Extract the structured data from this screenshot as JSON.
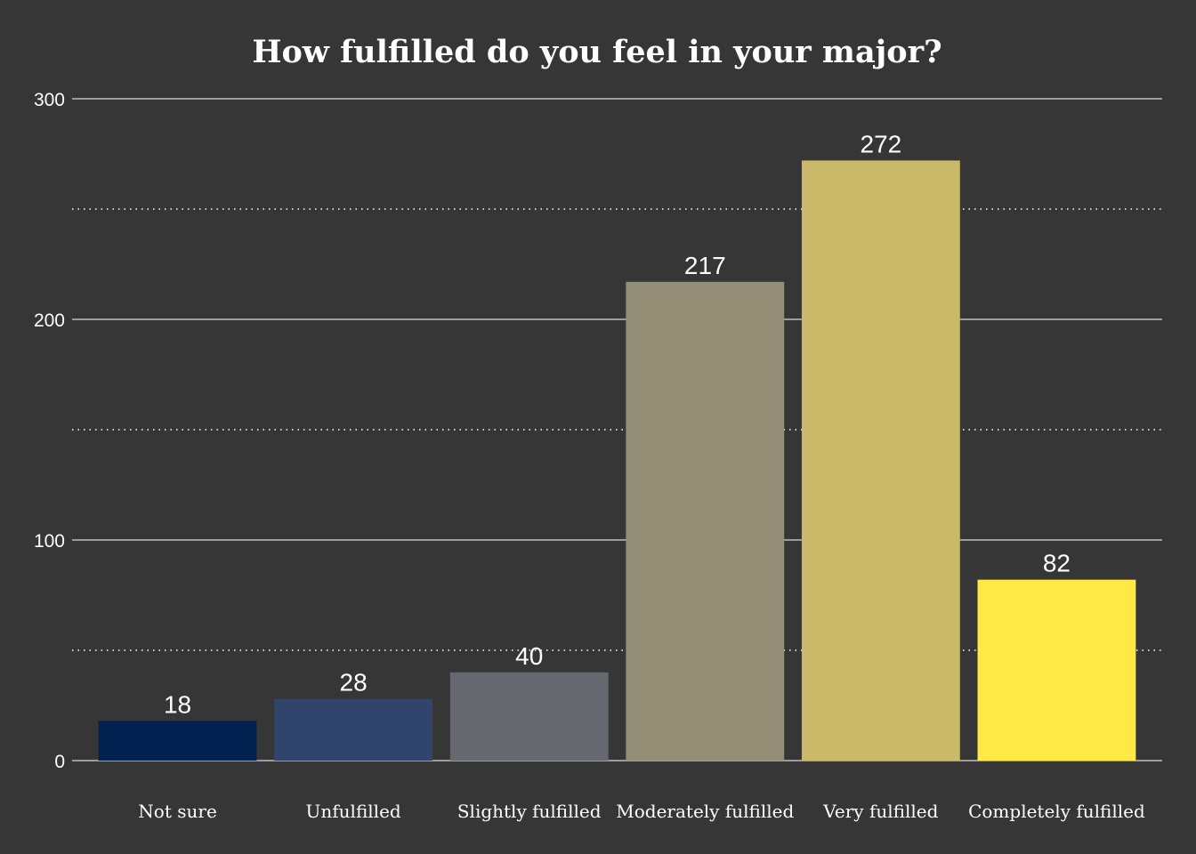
{
  "chart_data": {
    "type": "bar",
    "title": "How fulfilled do you feel in your major?",
    "xlabel": "",
    "ylabel": "",
    "categories": [
      "Not sure",
      "Unfulfilled",
      "Slightly fulfilled",
      "Moderately fulfilled",
      "Very fulfilled",
      "Completely fulfilled"
    ],
    "values": [
      18,
      28,
      40,
      217,
      272,
      82
    ],
    "data_labels": [
      "18",
      "28",
      "40",
      "217",
      "272",
      "82"
    ],
    "colors": [
      "#00214f",
      "#31446b",
      "#666870",
      "#958f78",
      "#cbb96a",
      "#ffe945"
    ],
    "ylim": [
      0,
      300
    ],
    "yticks": [
      0,
      100,
      200,
      300
    ],
    "ytick_labels": [
      "0",
      "100",
      "200",
      "300"
    ],
    "minor_gridlines": [
      50,
      150,
      250
    ],
    "grid": true,
    "legend": "none",
    "background": "#363636"
  }
}
